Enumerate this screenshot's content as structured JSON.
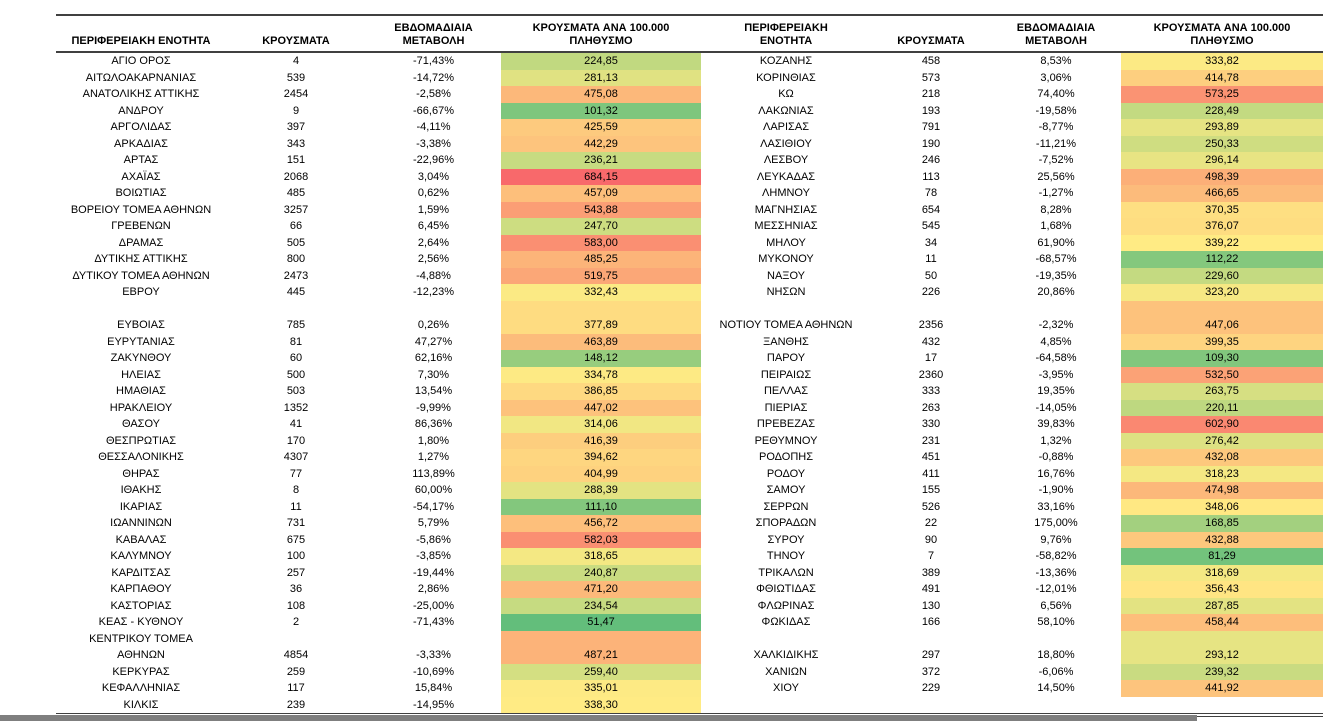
{
  "colors": {
    "border": "#404040",
    "text": "#000000",
    "scrollbar_thumb": "#7f7f7f",
    "scale_min_green": "#63BE7B",
    "scale_mid_yellow": "#FFEB84",
    "scale_max_red": "#F8696B"
  },
  "chart_data": {
    "type": "table",
    "title": "",
    "columns": [
      "ΠΕΡΙΦΕΡΕΙΑΚΗ ΕΝΟΤΗΤΑ",
      "ΚΡΟΥΣΜΑΤΑ",
      "ΕΒΔΟΜΑΔΙΑΙΑ ΜΕΤΑΒΟΛΗ",
      "ΚΡΟΥΣΜΑΤΑ ΑΝΑ 100.000 ΠΛΗΘΥΣΜΟ"
    ],
    "heatmap_column": "ΚΡΟΥΣΜΑΤΑ ΑΝΑ 100.000 ΠΛΗΘΥΣΜΟ",
    "color_scale": {
      "min": "#63BE7B",
      "mid": "#FFEB84",
      "max": "#F8696B",
      "midpoint": "median"
    },
    "left_rows": [
      {
        "name": "ΑΓΙΟ ΟΡΟΣ",
        "cases": "4",
        "change": "-71,43%",
        "per100k": "224,85"
      },
      {
        "name": "ΑΙΤΩΛΟΑΚΑΡΝΑΝΙΑΣ",
        "cases": "539",
        "change": "-14,72%",
        "per100k": "281,13"
      },
      {
        "name": "ΑΝΑΤΟΛΙΚΗΣ ΑΤΤΙΚΗΣ",
        "cases": "2454",
        "change": "-2,58%",
        "per100k": "475,08"
      },
      {
        "name": "ΑΝΔΡΟΥ",
        "cases": "9",
        "change": "-66,67%",
        "per100k": "101,32"
      },
      {
        "name": "ΑΡΓΟΛΙΔΑΣ",
        "cases": "397",
        "change": "-4,11%",
        "per100k": "425,59"
      },
      {
        "name": "ΑΡΚΑΔΙΑΣ",
        "cases": "343",
        "change": "-3,38%",
        "per100k": "442,29"
      },
      {
        "name": "ΑΡΤΑΣ",
        "cases": "151",
        "change": "-22,96%",
        "per100k": "236,21"
      },
      {
        "name": "ΑΧΑΪΑΣ",
        "cases": "2068",
        "change": "3,04%",
        "per100k": "684,15"
      },
      {
        "name": "ΒΟΙΩΤΙΑΣ",
        "cases": "485",
        "change": "0,62%",
        "per100k": "457,09"
      },
      {
        "name": "ΒΟΡΕΙΟΥ ΤΟΜΕΑ ΑΘΗΝΩΝ",
        "cases": "3257",
        "change": "1,59%",
        "per100k": "543,88"
      },
      {
        "name": "ΓΡΕΒΕΝΩΝ",
        "cases": "66",
        "change": "6,45%",
        "per100k": "247,70"
      },
      {
        "name": "ΔΡΑΜΑΣ",
        "cases": "505",
        "change": "2,64%",
        "per100k": "583,00"
      },
      {
        "name": "ΔΥΤΙΚΗΣ ΑΤΤΙΚΗΣ",
        "cases": "800",
        "change": "2,56%",
        "per100k": "485,25"
      },
      {
        "name": "ΔΥΤΙΚΟΥ ΤΟΜΕΑ ΑΘΗΝΩΝ",
        "cases": "2473",
        "change": "-4,88%",
        "per100k": "519,75"
      },
      {
        "name": "ΕΒΡΟΥ",
        "cases": "445",
        "change": "-12,23%",
        "per100k": "332,43"
      },
      {
        "name": "ΕΥΒΟΙΑΣ",
        "cases": "785",
        "change": "0,26%",
        "per100k": "377,89",
        "tall": true
      },
      {
        "name": "ΕΥΡΥΤΑΝΙΑΣ",
        "cases": "81",
        "change": "47,27%",
        "per100k": "463,89"
      },
      {
        "name": "ΖΑΚΥΝΘΟΥ",
        "cases": "60",
        "change": "62,16%",
        "per100k": "148,12"
      },
      {
        "name": "ΗΛΕΙΑΣ",
        "cases": "500",
        "change": "7,30%",
        "per100k": "334,78"
      },
      {
        "name": "ΗΜΑΘΙΑΣ",
        "cases": "503",
        "change": "13,54%",
        "per100k": "386,85"
      },
      {
        "name": "ΗΡΑΚΛΕΙΟΥ",
        "cases": "1352",
        "change": "-9,99%",
        "per100k": "447,02"
      },
      {
        "name": "ΘΑΣΟΥ",
        "cases": "41",
        "change": "86,36%",
        "per100k": "314,06"
      },
      {
        "name": "ΘΕΣΠΡΩΤΙΑΣ",
        "cases": "170",
        "change": "1,80%",
        "per100k": "416,39"
      },
      {
        "name": "ΘΕΣΣΑΛΟΝΙΚΗΣ",
        "cases": "4307",
        "change": "1,27%",
        "per100k": "394,62"
      },
      {
        "name": "ΘΗΡΑΣ",
        "cases": "77",
        "change": "113,89%",
        "per100k": "404,99"
      },
      {
        "name": "ΙΘΑΚΗΣ",
        "cases": "8",
        "change": "60,00%",
        "per100k": "288,39"
      },
      {
        "name": "ΙΚΑΡΙΑΣ",
        "cases": "11",
        "change": "-54,17%",
        "per100k": "111,10"
      },
      {
        "name": "ΙΩΑΝΝΙΝΩΝ",
        "cases": "731",
        "change": "5,79%",
        "per100k": "456,72"
      },
      {
        "name": "ΚΑΒΑΛΑΣ",
        "cases": "675",
        "change": "-5,86%",
        "per100k": "582,03"
      },
      {
        "name": "ΚΑΛΥΜΝΟΥ",
        "cases": "100",
        "change": "-3,85%",
        "per100k": "318,65"
      },
      {
        "name": "ΚΑΡΔΙΤΣΑΣ",
        "cases": "257",
        "change": "-19,44%",
        "per100k": "240,87"
      },
      {
        "name": "ΚΑΡΠΑΘΟΥ",
        "cases": "36",
        "change": "2,86%",
        "per100k": "471,20"
      },
      {
        "name": "ΚΑΣΤΟΡΙΑΣ",
        "cases": "108",
        "change": "-25,00%",
        "per100k": "234,54"
      },
      {
        "name": "ΚΕΑΣ - ΚΥΘΝΟΥ",
        "cases": "2",
        "change": "-71,43%",
        "per100k": "51,47"
      },
      {
        "name": "ΚΕΝΤΡΙΚΟΥ ΤΟΜΕΑ\nΑΘΗΝΩΝ",
        "cases": "4854",
        "change": "-3,33%",
        "per100k": "487,21",
        "tall": true
      },
      {
        "name": "ΚΕΡΚΥΡΑΣ",
        "cases": "259",
        "change": "-10,69%",
        "per100k": "259,40"
      },
      {
        "name": "ΚΕΦΑΛΛΗΝΙΑΣ",
        "cases": "117",
        "change": "15,84%",
        "per100k": "335,01"
      },
      {
        "name": "ΚΙΛΚΙΣ",
        "cases": "239",
        "change": "-14,95%",
        "per100k": "338,30"
      }
    ],
    "right_rows": [
      {
        "name": "ΚΟΖΑΝΗΣ",
        "cases": "458",
        "change": "8,53%",
        "per100k": "333,82"
      },
      {
        "name": "ΚΟΡΙΝΘΙΑΣ",
        "cases": "573",
        "change": "3,06%",
        "per100k": "414,78"
      },
      {
        "name": "ΚΩ",
        "cases": "218",
        "change": "74,40%",
        "per100k": "573,25"
      },
      {
        "name": "ΛΑΚΩΝΙΑΣ",
        "cases": "193",
        "change": "-19,58%",
        "per100k": "228,49"
      },
      {
        "name": "ΛΑΡΙΣΑΣ",
        "cases": "791",
        "change": "-8,77%",
        "per100k": "293,89"
      },
      {
        "name": "ΛΑΣΙΘΙΟΥ",
        "cases": "190",
        "change": "-11,21%",
        "per100k": "250,33"
      },
      {
        "name": "ΛΕΣΒΟΥ",
        "cases": "246",
        "change": "-7,52%",
        "per100k": "296,14"
      },
      {
        "name": "ΛΕΥΚΑΔΑΣ",
        "cases": "113",
        "change": "25,56%",
        "per100k": "498,39"
      },
      {
        "name": "ΛΗΜΝΟΥ",
        "cases": "78",
        "change": "-1,27%",
        "per100k": "466,65"
      },
      {
        "name": "ΜΑΓΝΗΣΙΑΣ",
        "cases": "654",
        "change": "8,28%",
        "per100k": "370,35"
      },
      {
        "name": "ΜΕΣΣΗΝΙΑΣ",
        "cases": "545",
        "change": "1,68%",
        "per100k": "376,07"
      },
      {
        "name": "ΜΗΛΟΥ",
        "cases": "34",
        "change": "61,90%",
        "per100k": "339,22"
      },
      {
        "name": "ΜΥΚΟΝΟΥ",
        "cases": "11",
        "change": "-68,57%",
        "per100k": "112,22"
      },
      {
        "name": "ΝΑΞΟΥ",
        "cases": "50",
        "change": "-19,35%",
        "per100k": "229,60"
      },
      {
        "name": "ΝΗΣΩΝ",
        "cases": "226",
        "change": "20,86%",
        "per100k": "323,20"
      },
      {
        "name": "ΝΟΤΙΟΥ ΤΟΜΕΑ ΑΘΗΝΩΝ",
        "cases": "2356",
        "change": "-2,32%",
        "per100k": "447,06",
        "tall": true
      },
      {
        "name": "ΞΑΝΘΗΣ",
        "cases": "432",
        "change": "4,85%",
        "per100k": "399,35"
      },
      {
        "name": "ΠΑΡΟΥ",
        "cases": "17",
        "change": "-64,58%",
        "per100k": "109,30"
      },
      {
        "name": "ΠΕΙΡΑΙΩΣ",
        "cases": "2360",
        "change": "-3,95%",
        "per100k": "532,50"
      },
      {
        "name": "ΠΕΛΛΑΣ",
        "cases": "333",
        "change": "19,35%",
        "per100k": "263,75"
      },
      {
        "name": "ΠΙΕΡΙΑΣ",
        "cases": "263",
        "change": "-14,05%",
        "per100k": "220,11"
      },
      {
        "name": "ΠΡΕΒΕΖΑΣ",
        "cases": "330",
        "change": "39,83%",
        "per100k": "602,90"
      },
      {
        "name": "ΡΕΘΥΜΝΟΥ",
        "cases": "231",
        "change": "1,32%",
        "per100k": "276,42"
      },
      {
        "name": "ΡΟΔΟΠΗΣ",
        "cases": "451",
        "change": "-0,88%",
        "per100k": "432,08"
      },
      {
        "name": "ΡΟΔΟΥ",
        "cases": "411",
        "change": "16,76%",
        "per100k": "318,23"
      },
      {
        "name": "ΣΑΜΟΥ",
        "cases": "155",
        "change": "-1,90%",
        "per100k": "474,98"
      },
      {
        "name": "ΣΕΡΡΩΝ",
        "cases": "526",
        "change": "33,16%",
        "per100k": "348,06"
      },
      {
        "name": "ΣΠΟΡΑΔΩΝ",
        "cases": "22",
        "change": "175,00%",
        "per100k": "168,85"
      },
      {
        "name": "ΣΥΡΟΥ",
        "cases": "90",
        "change": "9,76%",
        "per100k": "432,88"
      },
      {
        "name": "ΤΗΝΟΥ",
        "cases": "7",
        "change": "-58,82%",
        "per100k": "81,29"
      },
      {
        "name": "ΤΡΙΚΑΛΩΝ",
        "cases": "389",
        "change": "-13,36%",
        "per100k": "318,69"
      },
      {
        "name": "ΦΘΙΩΤΙΔΑΣ",
        "cases": "491",
        "change": "-12,01%",
        "per100k": "356,43"
      },
      {
        "name": "ΦΛΩΡΙΝΑΣ",
        "cases": "130",
        "change": "6,56%",
        "per100k": "287,85"
      },
      {
        "name": "ΦΩΚΙΔΑΣ",
        "cases": "166",
        "change": "58,10%",
        "per100k": "458,44"
      },
      {
        "name": "ΧΑΛΚΙΔΙΚΗΣ",
        "cases": "297",
        "change": "18,80%",
        "per100k": "293,12",
        "tall": true
      },
      {
        "name": "ΧΑΝΙΩΝ",
        "cases": "372",
        "change": "-6,06%",
        "per100k": "239,32"
      },
      {
        "name": "ΧΙΟΥ",
        "cases": "229",
        "change": "14,50%",
        "per100k": "441,92"
      },
      {
        "spacer": true
      }
    ]
  }
}
